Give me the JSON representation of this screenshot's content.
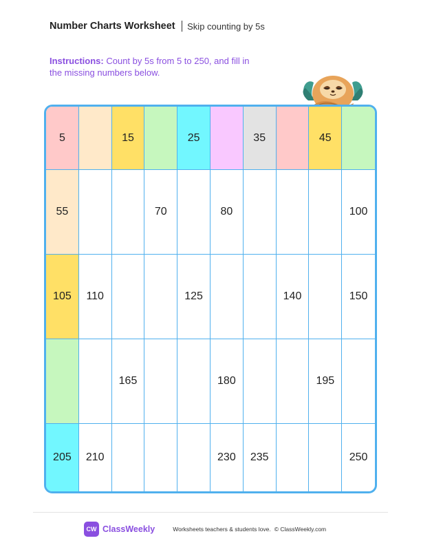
{
  "header": {
    "title": "Number Charts Worksheet",
    "subtitle": "Skip counting by 5s"
  },
  "instructions": {
    "lead": "Instructions:",
    "text": " Count by 5s from 5 to 250, and fill in the missing numbers below."
  },
  "mascot": {
    "icon": "sloth-icon"
  },
  "grid": {
    "rows": [
      [
        {
          "value": "5",
          "color": "#ffc9c9"
        },
        {
          "value": "",
          "color": "#ffe9c9"
        },
        {
          "value": "15",
          "color": "#ffe066"
        },
        {
          "value": "",
          "color": "#c6f7be"
        },
        {
          "value": "25",
          "color": "#72f7ff"
        },
        {
          "value": "",
          "color": "#f9c8ff"
        },
        {
          "value": "35",
          "color": "#e3e3e3"
        },
        {
          "value": "",
          "color": "#ffc9c9"
        },
        {
          "value": "45",
          "color": "#ffe066"
        },
        {
          "value": "",
          "color": "#c6f7be"
        }
      ],
      [
        {
          "value": "55",
          "color": "#ffe9c9"
        },
        {
          "value": "",
          "color": ""
        },
        {
          "value": "",
          "color": ""
        },
        {
          "value": "70",
          "color": ""
        },
        {
          "value": "",
          "color": ""
        },
        {
          "value": "80",
          "color": ""
        },
        {
          "value": "",
          "color": ""
        },
        {
          "value": "",
          "color": ""
        },
        {
          "value": "",
          "color": ""
        },
        {
          "value": "100",
          "color": ""
        }
      ],
      [
        {
          "value": "105",
          "color": "#ffe066"
        },
        {
          "value": "110",
          "color": ""
        },
        {
          "value": "",
          "color": ""
        },
        {
          "value": "",
          "color": ""
        },
        {
          "value": "125",
          "color": ""
        },
        {
          "value": "",
          "color": ""
        },
        {
          "value": "",
          "color": ""
        },
        {
          "value": "140",
          "color": ""
        },
        {
          "value": "",
          "color": ""
        },
        {
          "value": "150",
          "color": ""
        }
      ],
      [
        {
          "value": "",
          "color": "#c6f7be"
        },
        {
          "value": "",
          "color": ""
        },
        {
          "value": "165",
          "color": ""
        },
        {
          "value": "",
          "color": ""
        },
        {
          "value": "",
          "color": ""
        },
        {
          "value": "180",
          "color": ""
        },
        {
          "value": "",
          "color": ""
        },
        {
          "value": "",
          "color": ""
        },
        {
          "value": "195",
          "color": ""
        },
        {
          "value": "",
          "color": ""
        }
      ],
      [
        {
          "value": "205",
          "color": "#72f7ff"
        },
        {
          "value": "210",
          "color": ""
        },
        {
          "value": "",
          "color": ""
        },
        {
          "value": "",
          "color": ""
        },
        {
          "value": "",
          "color": ""
        },
        {
          "value": "230",
          "color": ""
        },
        {
          "value": "235",
          "color": ""
        },
        {
          "value": "",
          "color": ""
        },
        {
          "value": "",
          "color": ""
        },
        {
          "value": "250",
          "color": ""
        }
      ]
    ]
  },
  "footer": {
    "logo_text": "CW",
    "brand": "ClassWeekly",
    "tagline": "Worksheets teachers & students love.",
    "copyright": "© ClassWeekly.com"
  }
}
